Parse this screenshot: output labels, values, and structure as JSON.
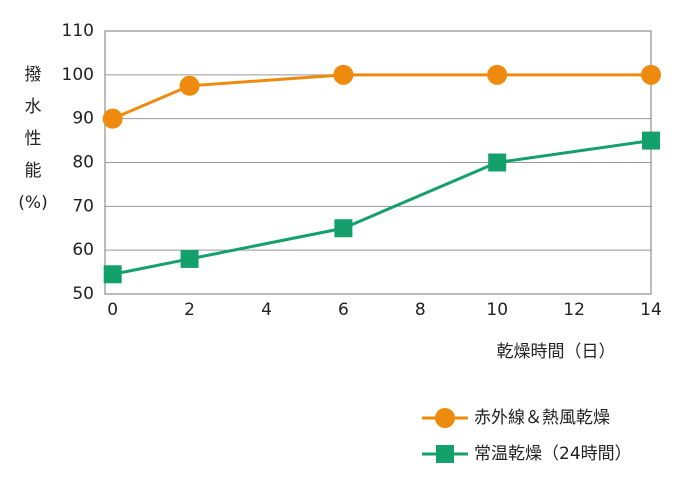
{
  "chart_data": {
    "type": "line",
    "y_label_lines": [
      "撥",
      "水",
      "性",
      "能",
      "(%)"
    ],
    "x_label": "乾燥時間（日）",
    "xlim": [
      -0.2,
      14
    ],
    "xticks": [
      0,
      2,
      4,
      6,
      8,
      10,
      12,
      14
    ],
    "ylim": [
      50,
      110
    ],
    "yticks": [
      50,
      60,
      70,
      80,
      90,
      100,
      110
    ],
    "grid": true,
    "legend": "bottom-right",
    "series": [
      {
        "name": "赤外線＆熱風乾燥",
        "color": "#ee8a0e",
        "marker": "circle",
        "x": [
          0,
          2,
          6,
          10,
          14
        ],
        "values": [
          90,
          97.5,
          100,
          100,
          100
        ]
      },
      {
        "name": "常温乾燥（24時間）",
        "color": "#14a06a",
        "marker": "square",
        "x": [
          0,
          2,
          6,
          10,
          14
        ],
        "values": [
          54.5,
          58,
          65,
          80,
          85
        ]
      }
    ]
  }
}
